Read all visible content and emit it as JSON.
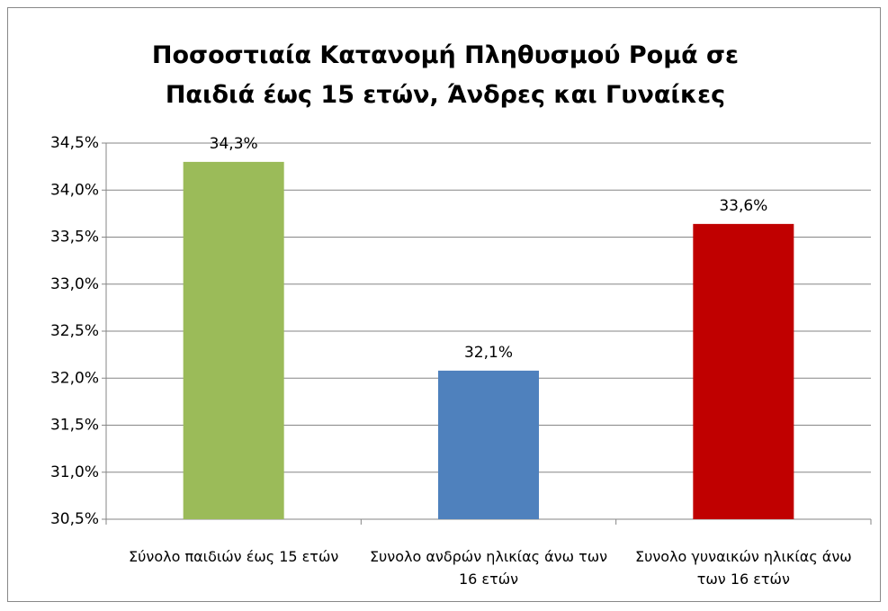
{
  "chart_data": {
    "type": "bar",
    "title": "Ποσοστιαία Κατανομή Πληθυσμού Ρομά σε Παιδιά έως 15 ετών, Άνδρες και Γυναίκες",
    "categories": [
      "Σύνολο παιδιών έως 15 ετών",
      "Συνολο ανδρών ηλικίας άνω των 16 ετών",
      "Συνολο γυναικών ηλικίας άνω των 16 ετών"
    ],
    "values": [
      34.3,
      32.08,
      33.64
    ],
    "value_labels": [
      "34,3%",
      "32,1%",
      "33,6%"
    ],
    "colors": [
      "#9bbb59",
      "#4f81bd",
      "#c00000"
    ],
    "ylim": [
      30.5,
      34.5
    ],
    "yticks": [
      {
        "value": 30.5,
        "label": "30,5%"
      },
      {
        "value": 31,
        "label": "31,0%"
      },
      {
        "value": 31.5,
        "label": "31,5%"
      },
      {
        "value": 32,
        "label": "32,0%"
      },
      {
        "value": 32.5,
        "label": "32,5%"
      },
      {
        "value": 33,
        "label": "33,0%"
      },
      {
        "value": 33.5,
        "label": "33,5%"
      },
      {
        "value": 34,
        "label": "34,0%"
      },
      {
        "value": 34.5,
        "label": "34,5%"
      }
    ],
    "grid": true
  }
}
